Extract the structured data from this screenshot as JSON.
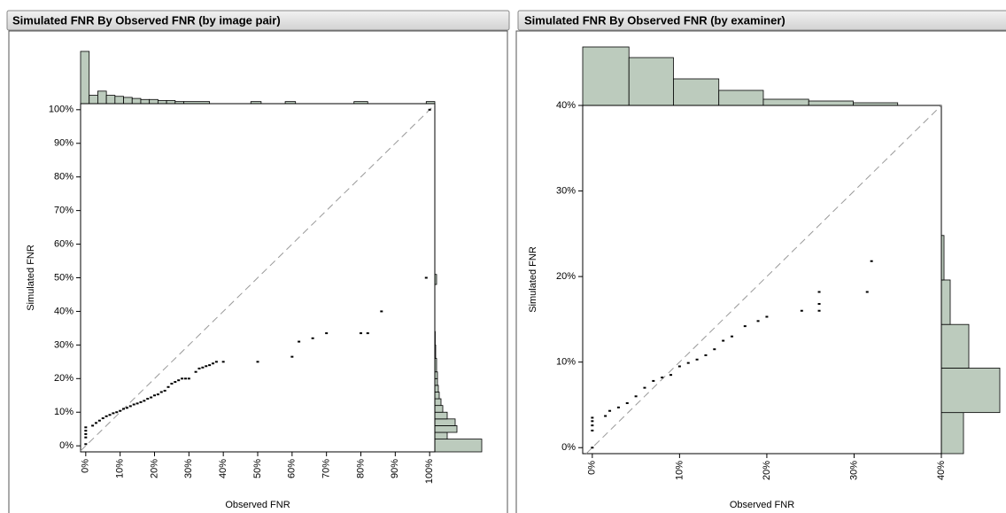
{
  "chart_data": [
    {
      "type": "scatter",
      "title": "Simulated FNR By Observed FNR (by image pair)",
      "x_label": "Observed FNR",
      "y_label": "Simulated FNR",
      "xlim": [
        -1.5,
        101.5
      ],
      "ylim": [
        -1.8,
        101.8
      ],
      "xticks": [
        {
          "value": 0,
          "label": "0%"
        },
        {
          "value": 10,
          "label": "10%"
        },
        {
          "value": 20,
          "label": "20%"
        },
        {
          "value": 30,
          "label": "30%"
        },
        {
          "value": 40,
          "label": "40%"
        },
        {
          "value": 50,
          "label": "50%"
        },
        {
          "value": 60,
          "label": "60%"
        },
        {
          "value": 70,
          "label": "70%"
        },
        {
          "value": 80,
          "label": "80%"
        },
        {
          "value": 90,
          "label": "90%"
        },
        {
          "value": 100,
          "label": "100%"
        }
      ],
      "yticks": [
        {
          "value": 0,
          "label": "0%"
        },
        {
          "value": 10,
          "label": "10%"
        },
        {
          "value": 20,
          "label": "20%"
        },
        {
          "value": 30,
          "label": "30%"
        },
        {
          "value": 40,
          "label": "40%"
        },
        {
          "value": 50,
          "label": "50%"
        },
        {
          "value": 60,
          "label": "60%"
        },
        {
          "value": 70,
          "label": "70%"
        },
        {
          "value": 80,
          "label": "80%"
        },
        {
          "value": 90,
          "label": "90%"
        },
        {
          "value": 100,
          "label": "100%"
        }
      ],
      "diagonal": true,
      "color": "#000000",
      "hist_color": "#bccbbd",
      "x": [
        0,
        0,
        0,
        0,
        0,
        2,
        3,
        4,
        5,
        6,
        7,
        8,
        9,
        10,
        11,
        12,
        13,
        14,
        15,
        16,
        17,
        18,
        19,
        20,
        21,
        22,
        23,
        24,
        25,
        26,
        27,
        28,
        29,
        30,
        32,
        33,
        34,
        35,
        36,
        37,
        38,
        40,
        50,
        60,
        62,
        66,
        70,
        80,
        82,
        86,
        99,
        100
      ],
      "values": [
        0.5,
        2.5,
        3.5,
        4.5,
        5.5,
        6,
        6.8,
        7.5,
        8.2,
        8.8,
        9.2,
        9.7,
        10,
        10.4,
        11,
        11.3,
        11.8,
        12.3,
        12.6,
        13,
        13.4,
        14,
        14.4,
        15,
        15.3,
        16,
        16.4,
        17.5,
        18.5,
        19,
        19.5,
        20,
        20,
        20,
        22,
        23,
        23.3,
        23.7,
        24,
        24.5,
        25,
        25,
        25,
        26.5,
        31,
        32,
        33.5,
        33.5,
        33.5,
        40,
        50,
        100
      ],
      "x_histogram": {
        "bins": [
          -1.5,
          1,
          3.5,
          6,
          8.5,
          11,
          13.5,
          16,
          18.5,
          21,
          23.5,
          26,
          28.5,
          36,
          48,
          51,
          58,
          61,
          78,
          82,
          99,
          101.5
        ],
        "counts": [
          25,
          4,
          6,
          4,
          3.5,
          3,
          2.5,
          2,
          2,
          1.5,
          1.5,
          1,
          1,
          0,
          1,
          0,
          1,
          0,
          1,
          0,
          1
        ]
      },
      "y_histogram": {
        "bins": [
          -1.8,
          2,
          4,
          6,
          8,
          10,
          12,
          14,
          16,
          18,
          20,
          22,
          26,
          30,
          34,
          48,
          51
        ],
        "counts": [
          53,
          14,
          25,
          23,
          14,
          9,
          7,
          5,
          4,
          3,
          3,
          2,
          1,
          0.5,
          0,
          2
        ]
      }
    },
    {
      "type": "scatter",
      "title": "Simulated FNR By Observed FNR (by examiner)",
      "x_label": "Observed FNR",
      "y_label": "Simulated FNR",
      "xlim": [
        -1.1,
        40
      ],
      "ylim": [
        -0.7,
        40
      ],
      "xticks": [
        {
          "value": 0,
          "label": "0%"
        },
        {
          "value": 10,
          "label": "10%"
        },
        {
          "value": 20,
          "label": "20%"
        },
        {
          "value": 30,
          "label": "30%"
        },
        {
          "value": 40,
          "label": "40%"
        }
      ],
      "yticks": [
        {
          "value": 0,
          "label": "0%"
        },
        {
          "value": 10,
          "label": "10%"
        },
        {
          "value": 20,
          "label": "20%"
        },
        {
          "value": 30,
          "label": "30%"
        },
        {
          "value": 40,
          "label": "40%"
        }
      ],
      "diagonal": true,
      "color": "#000000",
      "hist_color": "#bccbbd",
      "x": [
        0,
        0,
        0,
        0,
        0,
        1.5,
        2,
        3,
        4,
        5,
        6,
        7,
        8,
        9,
        10,
        11,
        12,
        13,
        14,
        15,
        16,
        17.5,
        19,
        20,
        24,
        26,
        26,
        26,
        31.5,
        32
      ],
      "values": [
        0,
        2,
        2.6,
        3.1,
        3.5,
        3.7,
        4.3,
        4.7,
        5.2,
        6,
        7,
        7.8,
        8.2,
        8.5,
        9.5,
        9.9,
        10.3,
        10.8,
        11.5,
        12.5,
        13,
        14.2,
        14.8,
        15.3,
        16,
        16,
        16.8,
        18.2,
        18.2,
        21.8
      ],
      "x_histogram": {
        "bins": [
          -1.1,
          4.2,
          9.3,
          14.5,
          19.6,
          24.8,
          29.9,
          35
        ],
        "counts": [
          66,
          54,
          30,
          17,
          7,
          5,
          3
        ]
      },
      "y_histogram": {
        "bins": [
          -0.7,
          4.1,
          9.3,
          14.4,
          19.6,
          24.8
        ],
        "counts": [
          25,
          66,
          31,
          10,
          3
        ]
      }
    }
  ]
}
